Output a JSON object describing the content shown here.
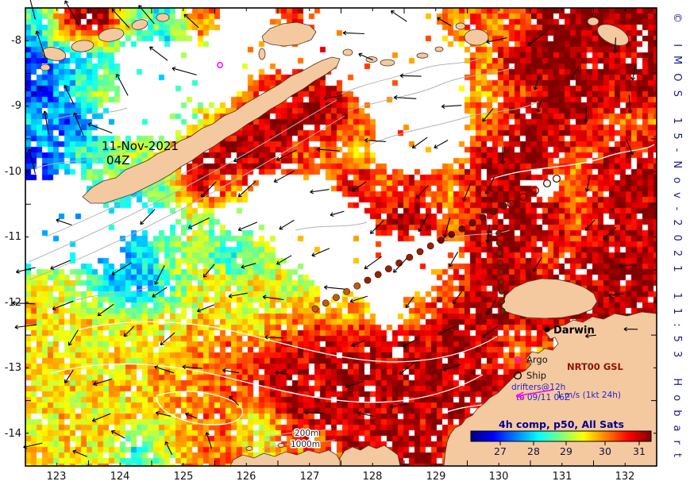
{
  "map": {
    "date_label": {
      "line1": "11-Nov-2021",
      "line2": "04Z"
    },
    "city": {
      "name": "Darwin"
    },
    "depth_labels": {
      "d200": "200m",
      "d1000": "1000m"
    }
  },
  "legend": {
    "argo": "Argo",
    "ship": "Ship",
    "drifters_line1": "drifters@12h",
    "drifters_line2": "to 09/11 06Z",
    "scale": "1 m/s (1kt 24h)",
    "product": "NRT00 GSL",
    "argo_color": "#ff00ff",
    "ship_color": "#000000"
  },
  "colorbar": {
    "title": "4h comp, p50, All Sats",
    "ticks": [
      "27",
      "28",
      "29",
      "30",
      "31"
    ],
    "palette": [
      "#000080",
      "#0000ff",
      "#00ffff",
      "#80ff80",
      "#ffff00",
      "#ff8000",
      "#ff0000",
      "#800000"
    ]
  },
  "axes": {
    "lat_ticks": [
      "-8",
      "-9",
      "-10",
      "-11",
      "-12",
      "-13",
      "-14"
    ],
    "lon_ticks": [
      "123",
      "124",
      "125",
      "126",
      "127",
      "128",
      "129",
      "130",
      "131",
      "132"
    ]
  },
  "watermark": "© IMOS 15-Nov-2021 11:53 Hobart",
  "sst_grid": {
    "comment_units": "degC, null = no satellite data (white)",
    "values": [
      [
        28.6,
        31.2,
        31.3,
        28.8,
        28.6,
        30.3,
        null,
        null,
        30.8,
        null,
        null,
        null,
        null,
        30.2,
        30.6,
        30.4,
        31.4,
        31.5,
        31.4,
        31.3
      ],
      [
        27.5,
        28.3,
        28.5,
        null,
        null,
        null,
        null,
        null,
        null,
        null,
        null,
        null,
        null,
        null,
        30.2,
        31.2,
        31.4,
        31.3,
        31.2,
        31.4
      ],
      [
        27.3,
        28.5,
        29.3,
        null,
        null,
        null,
        null,
        30.5,
        31.1,
        31.2,
        null,
        null,
        null,
        null,
        30.0,
        30.7,
        31.3,
        31.4,
        31.2,
        31.3
      ],
      [
        28.3,
        27.4,
        null,
        null,
        null,
        29.5,
        30.5,
        31.3,
        31.4,
        31.3,
        30.5,
        null,
        null,
        null,
        30.2,
        31.2,
        31.4,
        31.3,
        30.5,
        30.3
      ],
      [
        27.4,
        28.4,
        29.1,
        29.3,
        29.5,
        31.3,
        31.4,
        31.3,
        30.7,
        30.3,
        30.1,
        null,
        null,
        null,
        31.0,
        31.3,
        31.2,
        30.4,
        31.0,
        31.2
      ],
      [
        null,
        null,
        29.1,
        28.5,
        29.3,
        31.2,
        30.3,
        null,
        null,
        null,
        31.1,
        30.5,
        31.0,
        30.3,
        31.2,
        31.3,
        null,
        30.3,
        31.2,
        31.3
      ],
      [
        null,
        null,
        null,
        null,
        null,
        29.3,
        null,
        null,
        null,
        null,
        null,
        31.1,
        31.2,
        30.3,
        31.2,
        31.4,
        31.3,
        30.5,
        31.2,
        31.3
      ],
      [
        null,
        null,
        null,
        28.3,
        29.1,
        29.4,
        28.4,
        29.3,
        null,
        null,
        null,
        null,
        null,
        null,
        31.2,
        31.3,
        30.5,
        31.2,
        31.3,
        31.2
      ],
      [
        29.6,
        29.4,
        28.3,
        27.6,
        28.6,
        29.5,
        29.6,
        29.5,
        29.3,
        null,
        null,
        null,
        null,
        30.5,
        31.2,
        31.3,
        31.2,
        31.0,
        31.3,
        31.4
      ],
      [
        29.8,
        29.7,
        29.6,
        29.7,
        29.6,
        29.8,
        29.7,
        29.7,
        30.1,
        30.3,
        30.1,
        null,
        30.3,
        31.2,
        31.3,
        31.2,
        31.0,
        31.2,
        31.3,
        31.2
      ],
      [
        29.7,
        29.8,
        29.7,
        29.8,
        29.9,
        30.3,
        30.4,
        30.5,
        31.2,
        31.3,
        31.2,
        31.3,
        31.2,
        31.3,
        31.2,
        30.4,
        30.3,
        31.0,
        31.2,
        31.0
      ],
      [
        29.8,
        29.7,
        29.8,
        29.9,
        30.1,
        30.3,
        30.4,
        31.2,
        31.3,
        31.2,
        31.3,
        31.2,
        31.3,
        31.2,
        31.3,
        31.2,
        31.0,
        31.2,
        31.0,
        31.2
      ],
      [
        29.7,
        29.8,
        29.7,
        29.8,
        29.9,
        30.3,
        30.1,
        29.6,
        31.2,
        31.3,
        31.2,
        31.3,
        31.2,
        31.3,
        null,
        null,
        31.0,
        31.2,
        31.0,
        31.2
      ],
      [
        29.8,
        29.7,
        29.8,
        28.6,
        29.4,
        30.3,
        30.4,
        29.5,
        30.3,
        30.5,
        31.2,
        31.3,
        31.2,
        31.0,
        null,
        31.0,
        31.2,
        31.0,
        31.2,
        31.0
      ]
    ]
  }
}
